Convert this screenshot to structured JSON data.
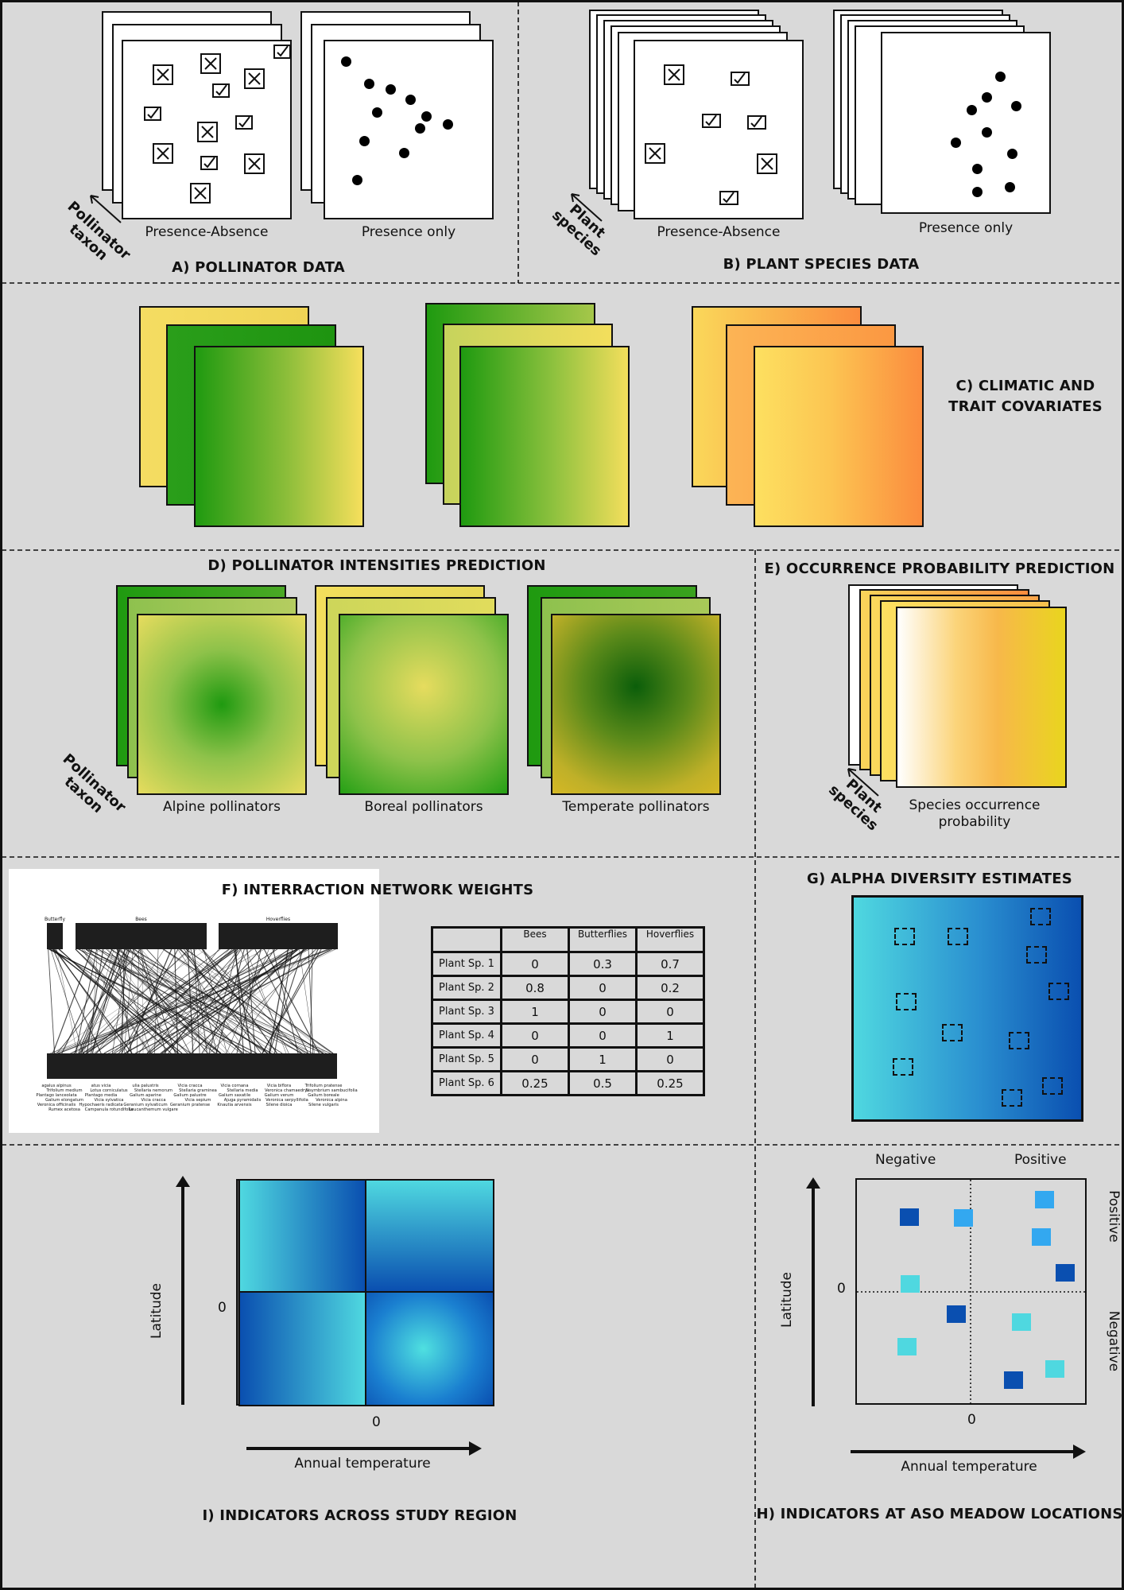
{
  "panels": {
    "a": {
      "title": "A) POLLINATOR DATA",
      "axis_label": "Pollinator\ntaxon",
      "pa_label": "Presence-Absence",
      "po_label": "Presence only"
    },
    "b": {
      "title": "B) PLANT SPECIES DATA",
      "axis_label": "Plant\nspecies",
      "pa_label": "Presence-Absence",
      "po_label": "Presence only"
    },
    "c": {
      "title": "C) CLIMATIC AND\nTRAIT COVARIATES"
    },
    "d": {
      "title": "D) POLLINATOR INTENSITIES PREDICTION",
      "axis_label": "Pollinator\ntaxon",
      "maps": [
        "Alpine pollinators",
        "Boreal pollinators",
        "Temperate pollinators"
      ]
    },
    "e": {
      "title": "E) OCCURRENCE PROBABILITY PREDICTION",
      "axis_label": "Plant\nspecies",
      "map_label": "Species occurrence\nprobability"
    },
    "f": {
      "title": "F) INTERRACTION NETWORK WEIGHTS",
      "network_groups": [
        "Butterfly",
        "Bees",
        "Hoverflies"
      ],
      "plant_labels": [
        "agalus alpinus",
        "atus vicia",
        "ulia palustris",
        "Vicia cracca",
        "Vicia cornana",
        "Vicia biflora",
        "Trifolium pratense",
        "Trifolium medium",
        "Lotus corniculatus",
        "Stellaria nemorum",
        "Stellaria graminea",
        "Stellaria media",
        "Veronica chamaedrys",
        "Sisymbrium sambucifolia",
        "Plantago lanceolata",
        "Plantago media",
        "Galium aparine",
        "Galium palustre",
        "Galium saxatile",
        "Galium verum",
        "Galium boreale",
        "Galium elongatum",
        "Vicia sylvatica",
        "Vicia cracca",
        "Vicia sepium",
        "Ajuga pyramidalis",
        "Veronica serpyllifolia",
        "Veronica alpina",
        "Veronica officinalis",
        "Hypochaeris radicata",
        "Geranium sylvaticum",
        "Geranium pratense",
        "Knautia arvensis",
        "Silene dioica",
        "Silene vulgaris",
        "Rumex acetosa",
        "Campanula rotundifolia",
        "Leucanthemum vulgare"
      ],
      "table": {
        "columns": [
          "",
          "Bees",
          "Butterflies",
          "Hoverflies"
        ],
        "rows": [
          [
            "Plant Sp. 1",
            "0",
            "0.3",
            "0.7"
          ],
          [
            "Plant Sp. 2",
            "0.8",
            "0",
            "0.2"
          ],
          [
            "Plant Sp. 3",
            "1",
            "0",
            "0"
          ],
          [
            "Plant Sp. 4",
            "0",
            "0",
            "1"
          ],
          [
            "Plant Sp. 5",
            "0",
            "1",
            "0"
          ],
          [
            "Plant Sp. 6",
            "0.25",
            "0.5",
            "0.25"
          ]
        ]
      }
    },
    "g": {
      "title": "G) ALPHA DIVERSITY ESTIMATES"
    },
    "h": {
      "title": "H) INDICATORS AT ASO MEADOW LOCATIONS",
      "top_neg": "Negative",
      "top_pos": "Positive",
      "right_pos": "Positive",
      "right_neg": "Negative",
      "ylabel": "Latitude",
      "xlabel": "Annual temperature",
      "zero_x": "0",
      "zero_y": "0",
      "point_colors": [
        "#0a4fb0",
        "#33a8f0",
        "#4fd8e0"
      ]
    },
    "i": {
      "title": "I) INDICATORS ACROSS STUDY REGION",
      "ylabel": "Latitude",
      "xlabel": "Annual temperature",
      "zero_x": "0",
      "zero_y": "0"
    }
  },
  "colors": {
    "background": "#d9d9d9",
    "green": "#1f9a10",
    "yellow": "#f3de5c",
    "orange": "#fb8c3e",
    "blue_dark": "#0a4fb0",
    "cyan": "#4fd8e0"
  }
}
